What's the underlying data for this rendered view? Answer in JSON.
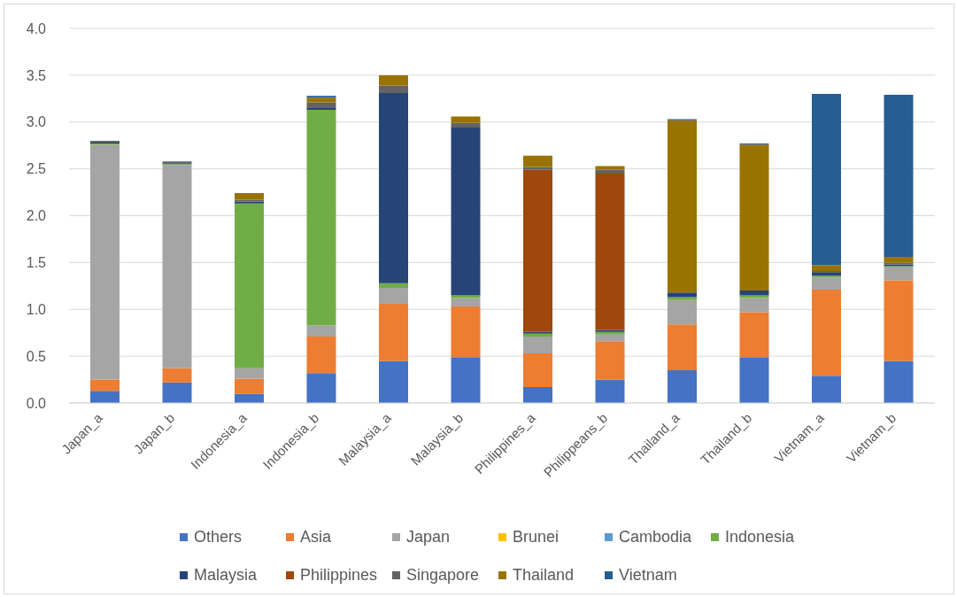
{
  "chart_data": {
    "type": "bar",
    "stacked": true,
    "categories": [
      "Japan_a",
      "Japan_b",
      "Indonesia_a",
      "Indonesia_b",
      "Malaysia_a",
      "Malaysia_b",
      "Philippines_a",
      "Philippeans_b",
      "Thailand_a",
      "Thailand_b",
      "Vietnam_a",
      "Vietnam_b"
    ],
    "series": [
      {
        "name": "Others",
        "color": "#4472c4",
        "values": [
          0.13,
          0.22,
          0.1,
          0.32,
          0.45,
          0.49,
          0.17,
          0.25,
          0.35,
          0.49,
          0.29,
          0.45
        ]
      },
      {
        "name": "Asia",
        "color": "#ed7d31",
        "values": [
          0.12,
          0.15,
          0.16,
          0.39,
          0.61,
          0.54,
          0.36,
          0.41,
          0.49,
          0.48,
          0.92,
          0.86
        ]
      },
      {
        "name": "Japan",
        "color": "#a5a5a5",
        "values": [
          2.51,
          2.17,
          0.11,
          0.12,
          0.17,
          0.09,
          0.18,
          0.07,
          0.26,
          0.15,
          0.13,
          0.14
        ]
      },
      {
        "name": "Brunei",
        "color": "#ffc000",
        "values": [
          0,
          0,
          0,
          0,
          0,
          0,
          0,
          0,
          0,
          0,
          0,
          0
        ]
      },
      {
        "name": "Cambodia",
        "color": "#5b9bd5",
        "values": [
          0,
          0,
          0,
          0,
          0,
          0,
          0,
          0,
          0,
          0,
          0,
          0
        ]
      },
      {
        "name": "Indonesia",
        "color": "#70ad47",
        "values": [
          0.01,
          0.01,
          1.76,
          2.3,
          0.05,
          0.03,
          0.03,
          0.03,
          0.03,
          0.03,
          0.02,
          0.01
        ]
      },
      {
        "name": "Malaysia",
        "color": "#264478",
        "values": [
          0.01,
          0.01,
          0.02,
          0.02,
          2.03,
          1.79,
          0.02,
          0.02,
          0.05,
          0.05,
          0.03,
          0.02
        ]
      },
      {
        "name": "Philippines",
        "color": "#9e480e",
        "values": [
          0,
          0,
          0,
          0,
          0,
          0,
          1.73,
          1.67,
          0,
          0,
          0,
          0
        ]
      },
      {
        "name": "Singapore",
        "color": "#636363",
        "values": [
          0.02,
          0.02,
          0.02,
          0.06,
          0.08,
          0.05,
          0.03,
          0.04,
          0,
          0,
          0.02,
          0.02
        ]
      },
      {
        "name": "Thailand",
        "color": "#997300",
        "values": [
          0,
          0,
          0.07,
          0.05,
          0.11,
          0.07,
          0.12,
          0.04,
          1.84,
          1.56,
          0.06,
          0.06
        ]
      },
      {
        "name": "Vietnam",
        "color": "#255e91",
        "values": [
          0,
          0,
          0,
          0.02,
          0,
          0,
          0,
          0,
          0.01,
          0.01,
          1.83,
          1.73
        ]
      }
    ],
    "ylim": [
      0,
      4
    ],
    "yticks": [
      {
        "value": 0,
        "label": "0.0"
      },
      0.5,
      {
        "value": 1,
        "label": "1.0"
      },
      1.5,
      {
        "value": 2,
        "label": "2.0"
      },
      2.5,
      {
        "value": 3,
        "label": "3.0"
      },
      3.5,
      {
        "value": 4,
        "label": "4.0"
      }
    ],
    "grid": "y",
    "legend": "bottom"
  }
}
